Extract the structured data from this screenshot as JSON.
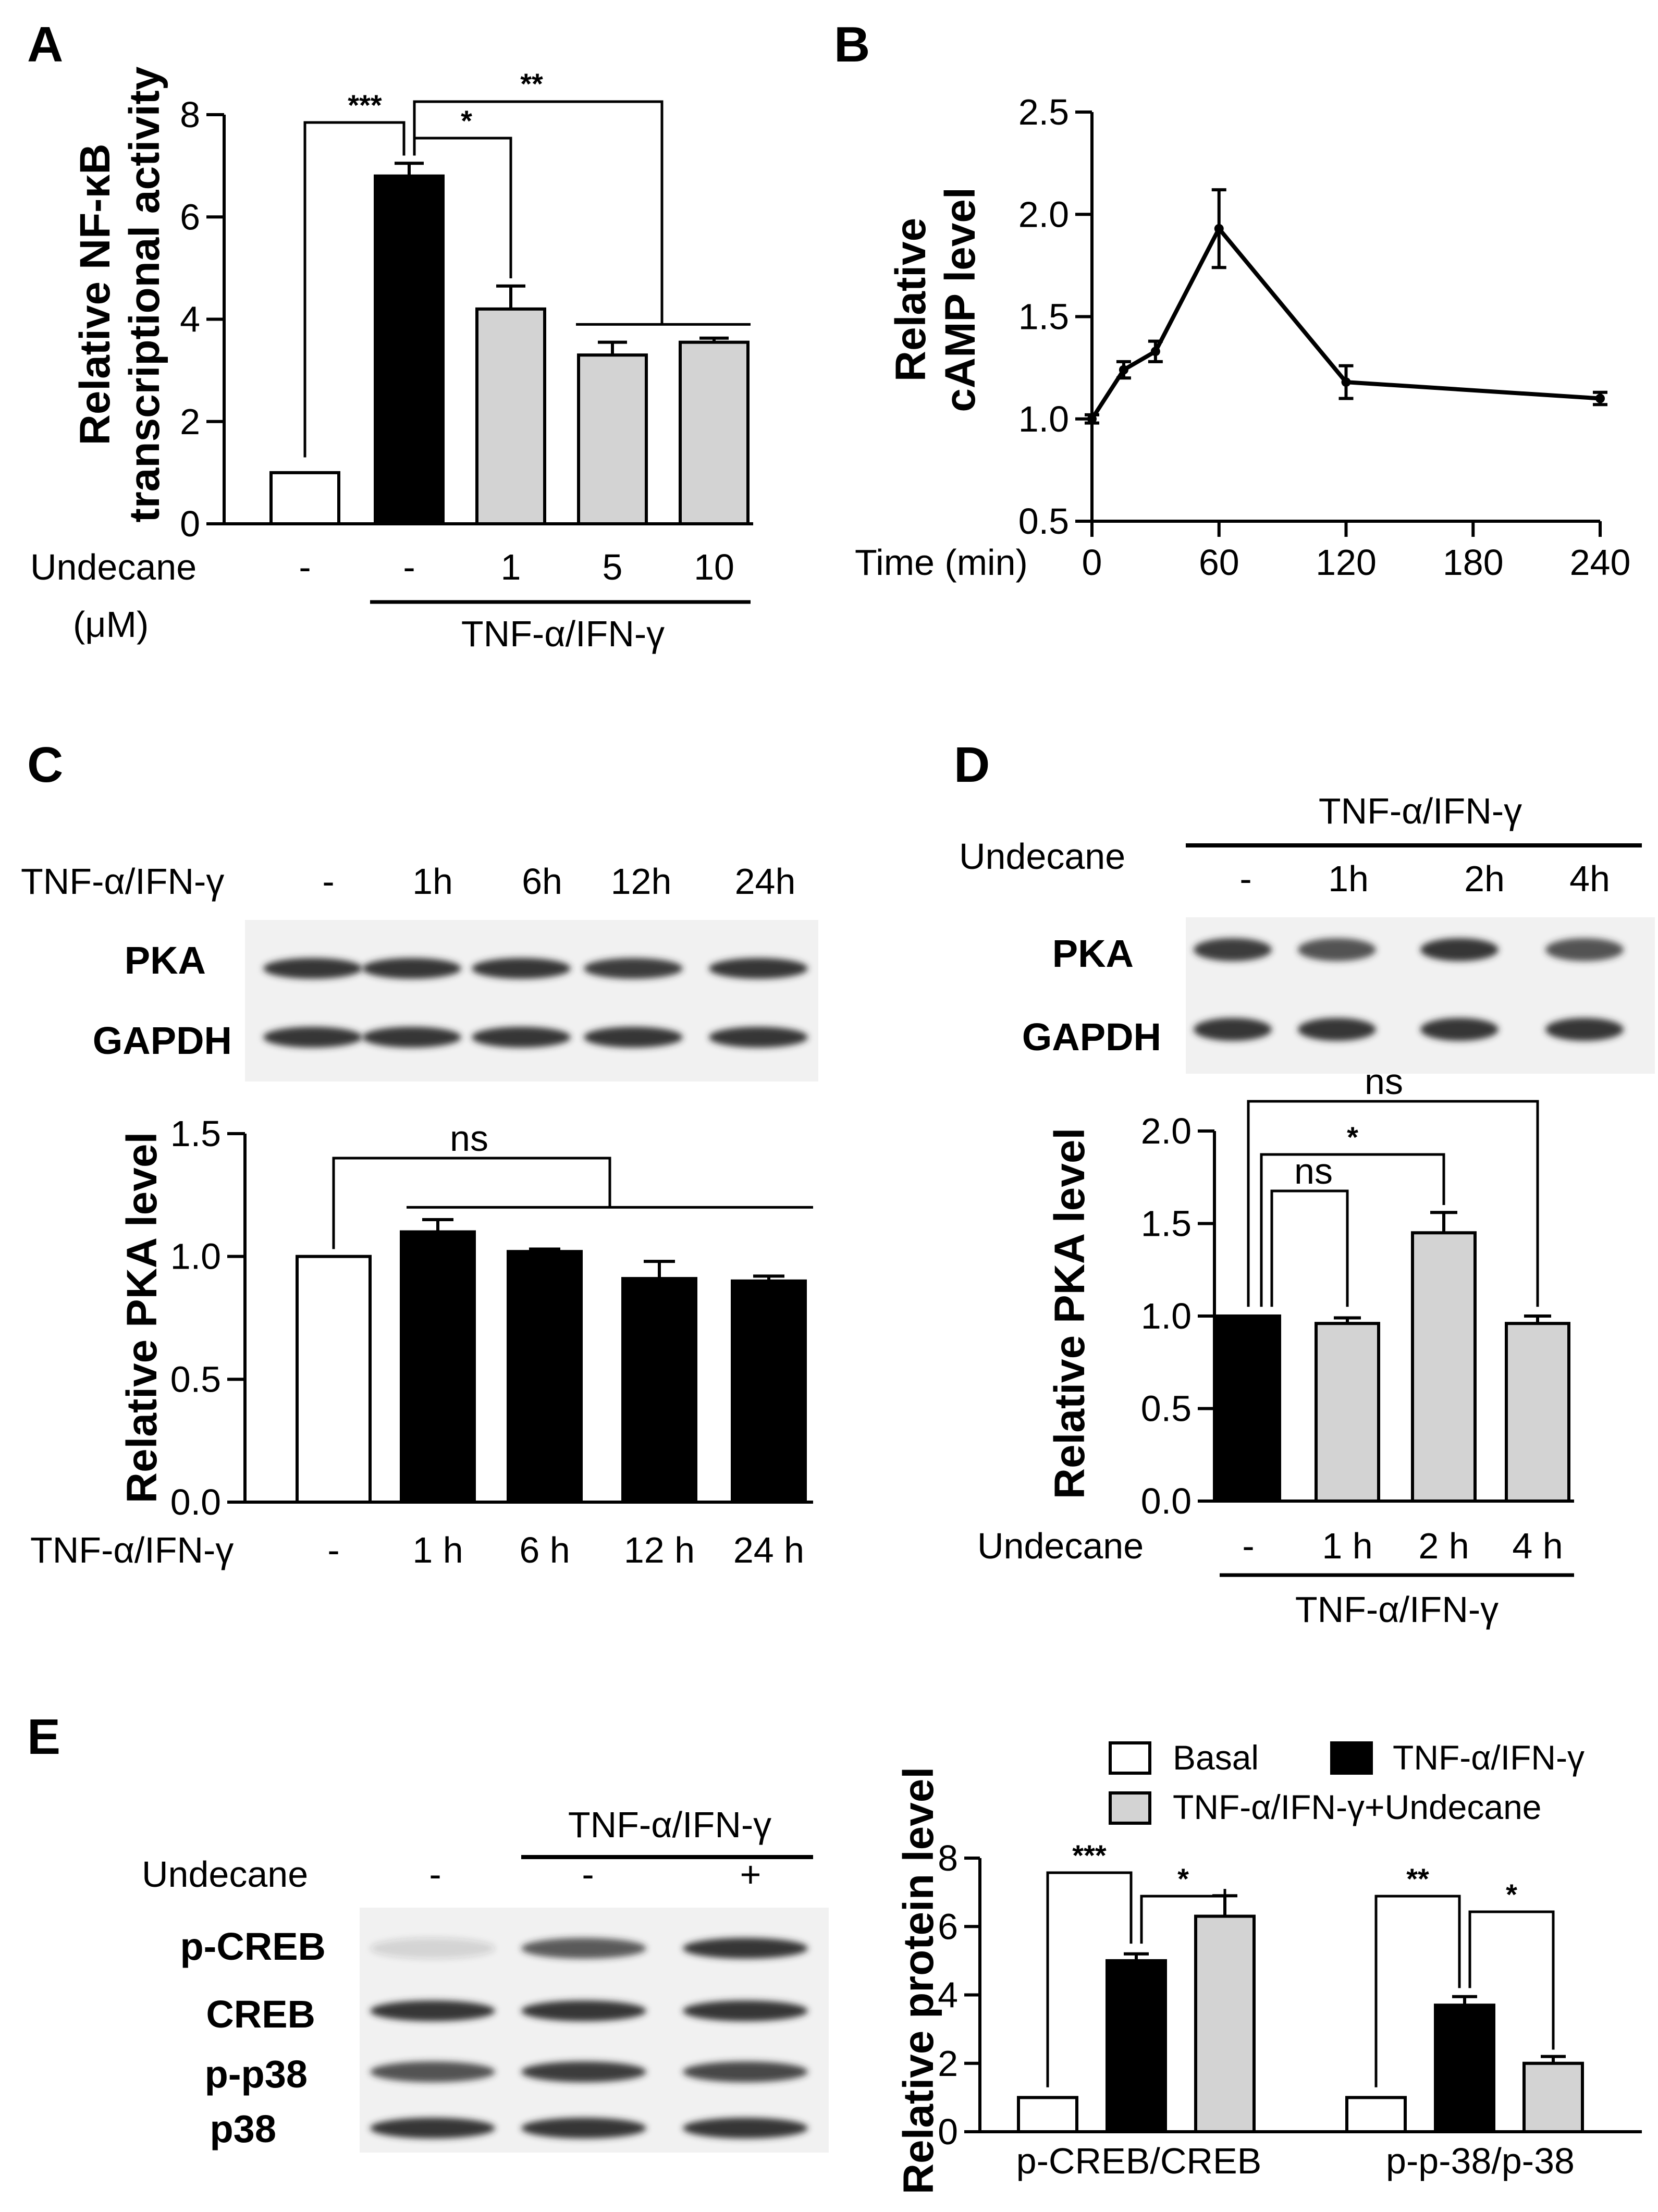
{
  "colors": {
    "open": "#ffffff",
    "black": "#000000",
    "gray": "#d3d3d3",
    "band": "#333333"
  },
  "chart_data": [
    {
      "id": "A",
      "type": "bar",
      "panel_label": "A",
      "ylabel_lines": [
        "Relative NF-κB",
        "transcriptional activity"
      ],
      "ylim": [
        0,
        8
      ],
      "yticks": [
        0,
        2,
        4,
        6,
        8
      ],
      "row_label": "Undecane",
      "row_unit": "(μM)",
      "categories": [
        "-",
        "-",
        "1",
        "5",
        "10"
      ],
      "values": [
        1.0,
        6.8,
        4.2,
        3.3,
        3.55
      ],
      "errors": [
        0,
        0.25,
        0.45,
        0.25,
        0.08
      ],
      "fills": [
        "#ffffff",
        "#000000",
        "#d3d3d3",
        "#d3d3d3",
        "#d3d3d3"
      ],
      "group_label": "TNF-α/IFN-γ",
      "significance": [
        "***",
        "*",
        "**"
      ]
    },
    {
      "id": "B",
      "type": "line",
      "panel_label": "B",
      "ylabel_lines": [
        "Relative",
        "cAMP level"
      ],
      "xlabel": "Time (min)",
      "x": [
        0,
        15,
        30,
        60,
        120,
        240
      ],
      "y": [
        1.0,
        1.24,
        1.33,
        1.93,
        1.18,
        1.1
      ],
      "errors": [
        0.02,
        0.04,
        0.05,
        0.19,
        0.08,
        0.03
      ],
      "xlim": [
        0,
        240
      ],
      "xticks": [
        0,
        60,
        120,
        180,
        240
      ],
      "ylim": [
        0.5,
        2.5
      ],
      "yticks": [
        "0.5",
        "1.0",
        "1.5",
        "2.0",
        "2.5"
      ]
    },
    {
      "id": "C",
      "type": "bar",
      "panel_label": "C",
      "ylabel": "Relative PKA level",
      "ylim": [
        0,
        1.5
      ],
      "yticks": [
        "0.0",
        "0.5",
        "1.0",
        "1.5"
      ],
      "row_label": "TNF-α/IFN-γ",
      "categories": [
        "-",
        "1 h",
        "6 h",
        "12 h",
        "24 h"
      ],
      "values": [
        1.0,
        1.1,
        1.02,
        0.91,
        0.9
      ],
      "errors": [
        0,
        0.05,
        0.01,
        0.07,
        0.02
      ],
      "fills": [
        "#ffffff",
        "#000000",
        "#000000",
        "#000000",
        "#000000"
      ],
      "significance": [
        "ns"
      ]
    },
    {
      "id": "D",
      "type": "bar",
      "panel_label": "D",
      "ylabel": "Relative PKA level",
      "ylim": [
        0,
        2.0
      ],
      "yticks": [
        "0.0",
        "0.5",
        "1.0",
        "1.5",
        "2.0"
      ],
      "row_label": "Undecane",
      "categories": [
        "-",
        "1 h",
        "2 h",
        "4 h"
      ],
      "values": [
        1.0,
        0.96,
        1.45,
        0.96
      ],
      "errors": [
        0,
        0.03,
        0.11,
        0.04
      ],
      "fills": [
        "#000000",
        "#d3d3d3",
        "#d3d3d3",
        "#d3d3d3"
      ],
      "group_label": "TNF-α/IFN-γ",
      "significance": [
        "ns",
        "*",
        "ns"
      ]
    },
    {
      "id": "E",
      "type": "bar",
      "panel_label": "E",
      "ylabel": "Relative protein level",
      "ylim": [
        0,
        8
      ],
      "yticks": [
        0,
        2,
        4,
        6,
        8
      ],
      "categories": [
        "p-CREB/CREB",
        "p-p-38/p-38"
      ],
      "series": [
        {
          "name": "Basal",
          "values": [
            1.0,
            1.0
          ],
          "errors": [
            0,
            0
          ],
          "color": "#ffffff"
        },
        {
          "name": "TNF-α/IFN-γ",
          "values": [
            5.0,
            3.7
          ],
          "errors": [
            0.2,
            0.25
          ],
          "color": "#000000"
        },
        {
          "name": "TNF-α/IFN-γ+Undecane",
          "values": [
            6.3,
            2.0
          ],
          "errors": [
            0.6,
            0.2
          ],
          "color": "#d3d3d3"
        }
      ],
      "significance": [
        "***",
        "*",
        "**",
        "*"
      ]
    }
  ],
  "blots": {
    "C": {
      "treatment_label": "TNF-α/IFN-γ",
      "lanes": [
        "-",
        "1h",
        "6h",
        "12h",
        "24h"
      ],
      "rows": [
        "PKA",
        "GAPDH"
      ]
    },
    "D": {
      "group_label": "TNF-α/IFN-γ",
      "row_label": "Undecane",
      "lanes": [
        "-",
        "1h",
        "2h",
        "4h"
      ],
      "rows": [
        "PKA",
        "GAPDH"
      ]
    },
    "E": {
      "group_label": "TNF-α/IFN-γ",
      "row_label": "Undecane",
      "lanes": [
        "-",
        "-",
        "+"
      ],
      "rows": [
        "p-CREB",
        "CREB",
        "p-p38",
        "p38"
      ]
    }
  }
}
